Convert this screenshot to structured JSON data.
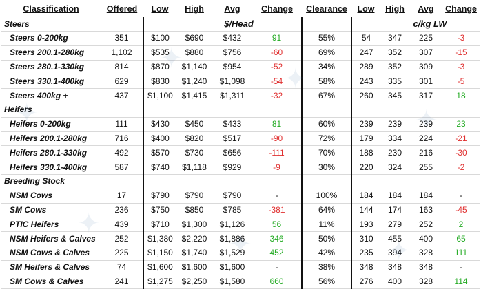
{
  "headers": {
    "classification": "Classification",
    "offered": "Offered",
    "low": "Low",
    "high": "High",
    "avg": "Avg",
    "change": "Change",
    "clearance": "Clearance",
    "low2": "Low",
    "high2": "High",
    "avg2": "Avg",
    "change2": "Change"
  },
  "units": {
    "head": "$/Head",
    "lw": "c/kg LW"
  },
  "sections": {
    "steers": "Steers",
    "heifers": "Heifers",
    "breeding": "Breeding Stock"
  },
  "rows": {
    "s1": {
      "name": "Steers 0-200kg",
      "offered": "351",
      "low": "$100",
      "high": "$690",
      "avg": "$432",
      "change": "91",
      "clearance": "55%",
      "low2": "54",
      "high2": "347",
      "avg2": "225",
      "change2": "-3"
    },
    "s2": {
      "name": "Steers 200.1-280kg",
      "offered": "1,102",
      "low": "$535",
      "high": "$880",
      "avg": "$756",
      "change": "-60",
      "clearance": "69%",
      "low2": "247",
      "high2": "352",
      "avg2": "307",
      "change2": "-15"
    },
    "s3": {
      "name": "Steers 280.1-330kg",
      "offered": "814",
      "low": "$870",
      "high": "$1,140",
      "avg": "$954",
      "change": "-52",
      "clearance": "34%",
      "low2": "289",
      "high2": "352",
      "avg2": "309",
      "change2": "-3"
    },
    "s4": {
      "name": "Steers 330.1-400kg",
      "offered": "629",
      "low": "$830",
      "high": "$1,240",
      "avg": "$1,098",
      "change": "-54",
      "clearance": "58%",
      "low2": "243",
      "high2": "335",
      "avg2": "301",
      "change2": "-5"
    },
    "s5": {
      "name": "Steers 400kg +",
      "offered": "437",
      "low": "$1,100",
      "high": "$1,415",
      "avg": "$1,311",
      "change": "-32",
      "clearance": "67%",
      "low2": "260",
      "high2": "345",
      "avg2": "317",
      "change2": "18"
    },
    "h1": {
      "name": "Heifers 0-200kg",
      "offered": "111",
      "low": "$430",
      "high": "$450",
      "avg": "$433",
      "change": "81",
      "clearance": "60%",
      "low2": "239",
      "high2": "239",
      "avg2": "239",
      "change2": "23"
    },
    "h2": {
      "name": "Heifers 200.1-280kg",
      "offered": "716",
      "low": "$400",
      "high": "$820",
      "avg": "$517",
      "change": "-90",
      "clearance": "72%",
      "low2": "179",
      "high2": "334",
      "avg2": "224",
      "change2": "-21"
    },
    "h3": {
      "name": "Heifers 280.1-330kg",
      "offered": "492",
      "low": "$570",
      "high": "$730",
      "avg": "$656",
      "change": "-111",
      "clearance": "70%",
      "low2": "188",
      "high2": "230",
      "avg2": "216",
      "change2": "-30"
    },
    "h4": {
      "name": "Heifers 330.1-400kg",
      "offered": "587",
      "low": "$740",
      "high": "$1,118",
      "avg": "$929",
      "change": "-9",
      "clearance": "30%",
      "low2": "220",
      "high2": "324",
      "avg2": "255",
      "change2": "-2"
    },
    "b1": {
      "name": "NSM Cows",
      "offered": "17",
      "low": "$790",
      "high": "$790",
      "avg": "$790",
      "change": "-",
      "clearance": "100%",
      "low2": "184",
      "high2": "184",
      "avg2": "184",
      "change2": "-"
    },
    "b2": {
      "name": "SM Cows",
      "offered": "236",
      "low": "$750",
      "high": "$850",
      "avg": "$785",
      "change": "-381",
      "clearance": "64%",
      "low2": "144",
      "high2": "174",
      "avg2": "163",
      "change2": "-45"
    },
    "b3": {
      "name": "PTIC Heifers",
      "offered": "439",
      "low": "$710",
      "high": "$1,300",
      "avg": "$1,126",
      "change": "56",
      "clearance": "11%",
      "low2": "193",
      "high2": "279",
      "avg2": "252",
      "change2": "2"
    },
    "b4": {
      "name": "NSM Heifers & Calves",
      "offered": "252",
      "low": "$1,380",
      "high": "$2,220",
      "avg": "$1,886",
      "change": "346",
      "clearance": "50%",
      "low2": "310",
      "high2": "455",
      "avg2": "400",
      "change2": "65"
    },
    "b5": {
      "name": "NSM Cows & Calves",
      "offered": "225",
      "low": "$1,150",
      "high": "$1,740",
      "avg": "$1,529",
      "change": "452",
      "clearance": "42%",
      "low2": "235",
      "high2": "394",
      "avg2": "328",
      "change2": "111"
    },
    "b6": {
      "name": "SM Heifers & Calves",
      "offered": "74",
      "low": "$1,600",
      "high": "$1,600",
      "avg": "$1,600",
      "change": "-",
      "clearance": "38%",
      "low2": "348",
      "high2": "348",
      "avg2": "348",
      "change2": "-"
    },
    "b7": {
      "name": "SM Cows & Calves",
      "offered": "241",
      "low": "$1,275",
      "high": "$2,250",
      "avg": "$1,580",
      "change": "660",
      "clearance": "56%",
      "low2": "276",
      "high2": "400",
      "avg2": "328",
      "change2": "114"
    }
  },
  "colors": {
    "negative": "#e03030",
    "positive": "#22aa22",
    "watermark": "#3a6ea5"
  },
  "watermark_icon": "bull-logo-watermark"
}
